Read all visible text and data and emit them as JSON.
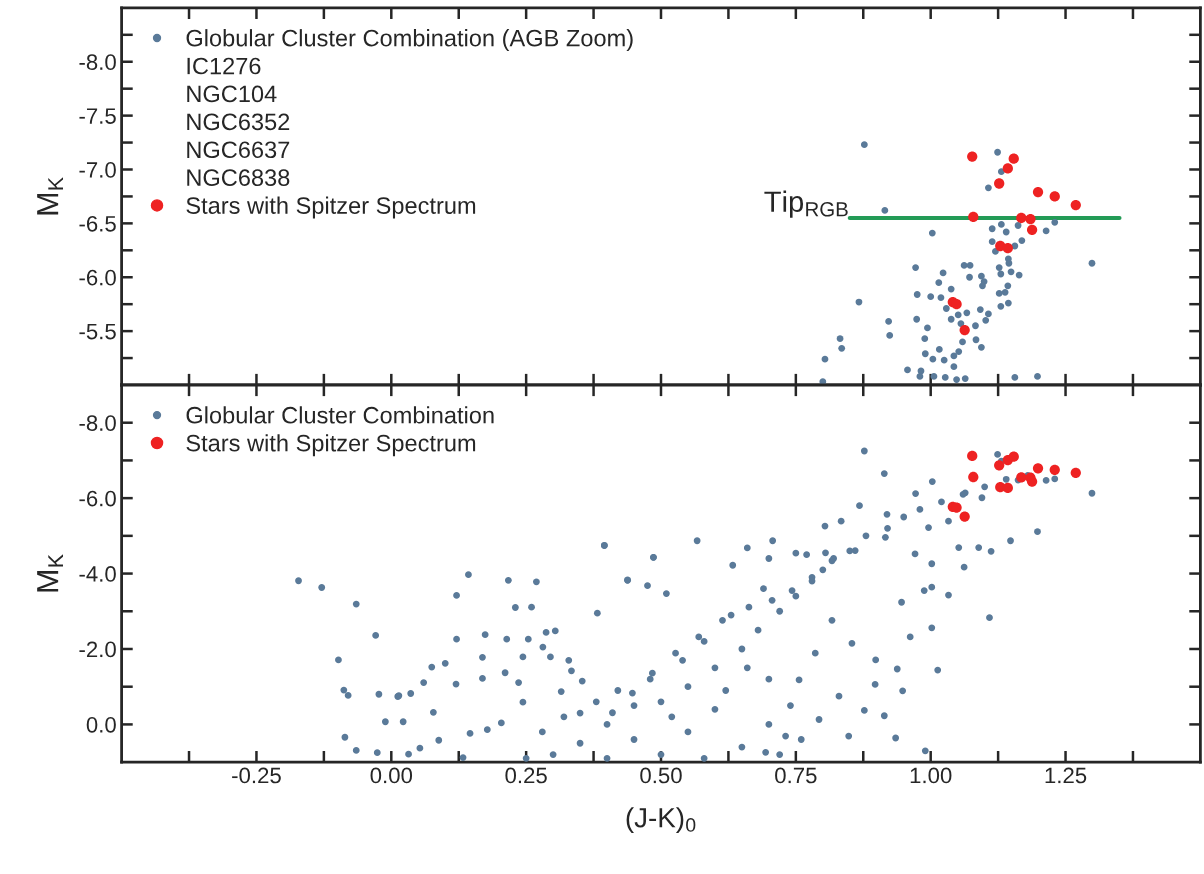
{
  "chart_data": [
    {
      "type": "scatter",
      "ylabel": "M$_{K}$",
      "xlim": [
        -0.5,
        1.5
      ],
      "ylim": [
        -5.0,
        -8.5
      ],
      "xticks": [
        {
          "value": -0.375,
          "label": null
        },
        {
          "value": -0.25,
          "label": null
        },
        {
          "value": -0.125,
          "label": null
        },
        {
          "value": 0,
          "label": null
        },
        {
          "value": 0.125,
          "label": null
        },
        {
          "value": 0.25,
          "label": null
        },
        {
          "value": 0.375,
          "label": null
        },
        {
          "value": 0.5,
          "label": null
        },
        {
          "value": 0.625,
          "label": null
        },
        {
          "value": 0.75,
          "label": null
        },
        {
          "value": 0.875,
          "label": null
        },
        {
          "value": 1.0,
          "label": null
        },
        {
          "value": 1.125,
          "label": null
        },
        {
          "value": 1.25,
          "label": null
        },
        {
          "value": 1.375,
          "label": null
        }
      ],
      "yticks": [
        {
          "value": -8.25,
          "label": null
        },
        {
          "value": -8,
          "label": "-8.0"
        },
        {
          "value": -7.75,
          "label": null
        },
        -7.5,
        {
          "value": -7.25,
          "label": null
        },
        {
          "value": -7,
          "label": "-7.0"
        },
        {
          "value": -6.75,
          "label": null
        },
        -6.5,
        {
          "value": -6.25,
          "label": null
        },
        {
          "value": -6,
          "label": "-6.0"
        },
        {
          "value": -5.75,
          "label": null
        },
        -5.5,
        {
          "value": -5.25,
          "label": null
        }
      ],
      "tick_labels": "y",
      "legend": "top left",
      "marker": "circle",
      "grid": false,
      "annotations": [
        "IC1276",
        "NGC104",
        "NGC6352",
        "NGC6637",
        "NGC6838",
        {
          "text": "Tip$_{RGB}$",
          "x": 0.85,
          "y": -6.55
        }
      ],
      "series": [
        {
          "name": "Globular Cluster Combination (AGB Zoom)",
          "color": "#5a7a99",
          "x": [
            0.877,
            1.124,
            1.131,
            1.107,
            0.915,
            1.23,
            1.214,
            1.162,
            1.131,
            1.114,
            1.14,
            1.003,
            1.114,
            1.169,
            1.156,
            1.12,
            1.299,
            1.144,
            1.145,
            0.972,
            1.062,
            1.073,
            1.127,
            1.023,
            1.072,
            1.094,
            1.149,
            1.13,
            1.164,
            1.015,
            1.099,
            1.096,
            1.143,
            1.038,
            0.975,
            1.0,
            1.019,
            1.138,
            1.127,
            1.144,
            1.13,
            0.867,
            1.029,
            1.067,
            1.092,
            1.107,
            1.051,
            1.038,
            1.102,
            0.922,
            0.974,
            0.924,
            0.994,
            0.989,
            1.083,
            1.056,
            1.084,
            1.094,
            1.059,
            0.832,
            0.835,
            0.804,
            0.8,
            0.99,
            1.016,
            1.004,
            1.025,
            1.043,
            1.052,
            1.043,
            0.957,
            0.982,
            0.98,
            1.006,
            1.027,
            1.048,
            1.064,
            1.156,
            1.198
          ],
          "values": [
            -7.23,
            -7.16,
            -6.98,
            -6.83,
            -6.62,
            -6.51,
            -6.43,
            -6.48,
            -6.49,
            -6.45,
            -6.42,
            -6.41,
            -6.33,
            -6.34,
            -6.29,
            -6.24,
            -6.13,
            -6.17,
            -6.13,
            -6.09,
            -6.11,
            -6.11,
            -6.09,
            -6.04,
            -6.0,
            -6.01,
            -6.05,
            -6.03,
            -6.02,
            -5.95,
            -5.96,
            -5.92,
            -5.92,
            -5.89,
            -5.84,
            -5.82,
            -5.81,
            -5.86,
            -5.85,
            -5.76,
            -5.73,
            -5.77,
            -5.71,
            -5.67,
            -5.7,
            -5.66,
            -5.65,
            -5.61,
            -5.6,
            -5.59,
            -5.61,
            -5.46,
            -5.53,
            -5.43,
            -5.55,
            -5.57,
            -5.42,
            -5.35,
            -5.4,
            -5.43,
            -5.34,
            -5.24,
            -5.03,
            -5.29,
            -5.33,
            -5.24,
            -5.23,
            -5.27,
            -5.31,
            -5.17,
            -5.14,
            -5.13,
            -5.08,
            -5.08,
            -5.07,
            -5.05,
            -5.06,
            -5.07,
            -5.08
          ]
        },
        {
          "name": "Stars with Spitzer Spectrum",
          "color": "#ee2222",
          "x": [
            1.077,
            1.154,
            1.143,
            1.127,
            1.199,
            1.23,
            1.269,
            1.079,
            1.168,
            1.185,
            1.188,
            1.129,
            1.143,
            1.041,
            1.048,
            1.063
          ],
          "values": [
            -7.12,
            -7.1,
            -7.01,
            -6.87,
            -6.79,
            -6.75,
            -6.67,
            -6.56,
            -6.55,
            -6.54,
            -6.44,
            -6.29,
            -6.27,
            -5.77,
            -5.75,
            -5.51
          ]
        },
        {
          "type": "line",
          "color": "#239b56",
          "line_style": "solid",
          "marker": "none",
          "x": [
            0.85,
            1.35
          ],
          "values": [
            -6.55,
            -6.55
          ]
        }
      ]
    },
    {
      "type": "scatter",
      "ylabel": "M$_{K}$",
      "xlabel": "(J-K)$_{0}$",
      "xlim": [
        -0.5,
        1.5
      ],
      "ylim": [
        1.0,
        -9.0
      ],
      "xticks": [
        {
          "value": -0.375,
          "label": null
        },
        {
          "value": -0.25,
          "label": "-0.25"
        },
        {
          "value": -0.125,
          "label": null
        },
        {
          "value": 0,
          "label": "0.00"
        },
        {
          "value": 0.125,
          "label": null
        },
        {
          "value": 0.25,
          "label": "0.25"
        },
        {
          "value": 0.375,
          "label": null
        },
        {
          "value": 0.5,
          "label": "0.50"
        },
        {
          "value": 0.625,
          "label": null
        },
        {
          "value": 0.75,
          "label": "0.75"
        },
        {
          "value": 0.875,
          "label": null
        },
        {
          "value": 1.0,
          "label": "1.00"
        },
        {
          "value": 1.125,
          "label": null
        },
        {
          "value": 1.25,
          "label": "1.25"
        },
        {
          "value": 1.375,
          "label": null
        }
      ],
      "yticks": [
        {
          "value": -8,
          "label": "-8.0"
        },
        {
          "value": -7,
          "label": null
        },
        {
          "value": -6,
          "label": "-6.0"
        },
        {
          "value": -5,
          "label": null
        },
        {
          "value": -4,
          "label": "-4.0"
        },
        {
          "value": -3,
          "label": null
        },
        {
          "value": -2,
          "label": "-2.0"
        },
        {
          "value": -1,
          "label": null
        },
        {
          "value": 0,
          "label": "0.0"
        }
      ],
      "legend": "top left",
      "marker": "circle",
      "grid": false,
      "series": [
        {
          "name": "Globular Cluster Combination",
          "color": "#5a7a99",
          "x": [
            -0.172,
            -0.129,
            -0.065,
            -0.029,
            -0.098,
            -0.088,
            -0.08,
            -0.023,
            0.012,
            -0.011,
            -0.086,
            -0.065,
            -0.026,
            0.143,
            0.217,
            0.269,
            0.121,
            0.23,
            0.26,
            0.395,
            0.486,
            0.438,
            0.382,
            0.174,
            0.121,
            0.214,
            0.254,
            0.287,
            0.304,
            0.1,
            0.075,
            0.06,
            0.12,
            0.169,
            0.211,
            0.236,
            0.281,
            0.295,
            0.329,
            0.334,
            0.244,
            0.169,
            0.014,
            0.022,
            0.032,
            0.053,
            0.078,
            0.036,
            0.146,
            0.178,
            0.204,
            0.244,
            0.315,
            0.354,
            0.088,
            0.133,
            0.877,
            0.914,
            1.003,
            1.214,
            1.198,
            1.109,
            1.013,
            0.948,
            0.868,
            0.804,
            0.834,
            0.919,
            0.972,
            1.064,
            1.095,
            1.148,
            1.112,
            1.062,
            1.033,
            1.002,
            0.988,
            0.946,
            0.962,
            1.002,
            0.938,
            0.897,
            0.914,
            0.877,
            0.935,
            0.99,
            0.395,
            0.567,
            0.707,
            0.66,
            0.75,
            0.486,
            0.438,
            0.475,
            0.51,
            0.633,
            0.7,
            0.805,
            0.916,
            0.86,
            0.817,
            0.78,
            0.743,
            0.706,
            0.663,
            0.614,
            0.57,
            0.527,
            0.484,
            0.447,
            0.41,
            0.971,
            1.002,
            1.052,
            1.089,
            1.033,
            0.996,
            0.817,
            0.854,
            0.898,
            0.786,
            0.756,
            0.83,
            0.793,
            0.848,
            0.731,
            0.694,
            0.35,
            0.4,
            0.45,
            0.5,
            0.55,
            0.6,
            0.65,
            0.7,
            0.55,
            0.6,
            0.65,
            0.68,
            0.72,
            0.75,
            0.78,
            0.8,
            0.5,
            0.45,
            0.4,
            0.3,
            0.35,
            0.62,
            0.58,
            0.52,
            0.48,
            0.42,
            0.38,
            0.7,
            0.74,
            0.66,
            0.25,
            0.28,
            0.32,
            0.72,
            0.76,
            0.82,
            0.85,
            0.88,
            0.92,
            0.95,
            0.98,
            1.02,
            1.06,
            1.1,
            1.14,
            1.18,
            0.63,
            0.69,
            0.77,
            0.58,
            0.54,
            1.124,
            1.131,
            1.23,
            1.299,
            1.162
          ],
          "values": [
            -3.81,
            -3.63,
            -3.19,
            -2.36,
            -1.71,
            -0.91,
            -0.77,
            -0.8,
            -0.74,
            -0.07,
            0.34,
            0.69,
            0.75,
            -3.97,
            -3.82,
            -3.78,
            -3.42,
            -3.1,
            -3.11,
            -4.75,
            -4.43,
            -3.83,
            -2.95,
            -2.38,
            -2.26,
            -2.26,
            -2.26,
            -2.44,
            -2.48,
            -1.62,
            -1.52,
            -1.11,
            -1.07,
            -1.22,
            -1.37,
            -1.11,
            -2.05,
            -1.79,
            -1.7,
            -1.42,
            -1.79,
            -1.78,
            -0.76,
            -0.07,
            0.79,
            0.63,
            -0.32,
            -0.82,
            0.24,
            0.14,
            -0.04,
            -0.59,
            -0.87,
            -1.15,
            0.42,
            0.88,
            -7.25,
            -6.65,
            -6.44,
            -6.47,
            -5.11,
            -2.83,
            -1.44,
            -0.89,
            -5.8,
            -5.26,
            -5.39,
            -5.57,
            -6.12,
            -6.14,
            -6.01,
            -4.87,
            -4.59,
            -4.17,
            -3.43,
            -3.64,
            -3.55,
            -3.24,
            -2.32,
            -2.56,
            -1.47,
            -1.06,
            -0.23,
            -0.37,
            0.36,
            0.7,
            -4.74,
            -4.87,
            -4.87,
            -4.68,
            -4.54,
            -4.43,
            -3.82,
            -3.68,
            -3.47,
            -4.22,
            -4.4,
            -4.55,
            -4.96,
            -4.61,
            -4.34,
            -3.9,
            -3.55,
            -3.29,
            -3.11,
            -2.76,
            -2.32,
            -1.89,
            -1.36,
            -0.83,
            -0.31,
            -4.52,
            -4.26,
            -4.69,
            -4.69,
            -5.39,
            -5.22,
            -2.76,
            -2.15,
            -1.71,
            -1.89,
            -1.18,
            -0.75,
            -0.13,
            0.31,
            0.31,
            0.74,
            0.5,
            0.0,
            -0.5,
            0.8,
            0.2,
            -0.4,
            0.6,
            0.0,
            -1.0,
            -1.5,
            -2.0,
            -2.5,
            -3.0,
            -3.4,
            -3.8,
            -4.1,
            -0.6,
            0.4,
            0.9,
            0.8,
            -0.3,
            -0.9,
            0.9,
            -0.2,
            -1.2,
            -0.9,
            -0.6,
            -1.2,
            -0.5,
            -1.5,
            0.9,
            0.2,
            -0.2,
            0.8,
            0.4,
            -4.4,
            -4.6,
            -5.0,
            -5.2,
            -5.5,
            -5.7,
            -5.9,
            -6.1,
            -6.3,
            -6.5,
            -6.6,
            -2.9,
            -3.6,
            -4.5,
            -2.2,
            -1.7,
            -7.16,
            -6.98,
            -6.51,
            -6.13,
            -6.48
          ]
        },
        {
          "name": "Stars with Spitzer Spectrum",
          "color": "#ee2222",
          "x": [
            1.077,
            1.154,
            1.143,
            1.127,
            1.199,
            1.23,
            1.269,
            1.079,
            1.168,
            1.185,
            1.188,
            1.129,
            1.143,
            1.041,
            1.048,
            1.063
          ],
          "values": [
            -7.12,
            -7.1,
            -7.01,
            -6.87,
            -6.79,
            -6.75,
            -6.67,
            -6.56,
            -6.55,
            -6.54,
            -6.44,
            -6.29,
            -6.27,
            -5.77,
            -5.75,
            -5.51
          ]
        }
      ]
    }
  ]
}
